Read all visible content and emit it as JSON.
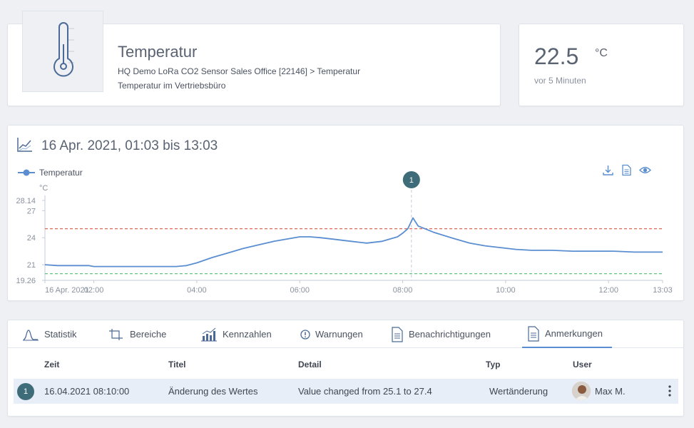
{
  "sensor": {
    "title": "Temperatur",
    "path": "HQ Demo LoRa CO2 Sensor Sales Office [22146] > Temperatur",
    "description": "Temperatur im Vertriebsbüro",
    "icon": "thermometer-icon"
  },
  "current": {
    "value": "22.5",
    "unit": "°C",
    "age": "vor 5 Minuten"
  },
  "chart": {
    "range_title": "16 Apr. 2021, 01:03 bis 13:03",
    "legend_label": "Temperatur",
    "annotation_marker": "1",
    "toolbar": [
      "download-icon",
      "document-icon",
      "eye-icon"
    ]
  },
  "chart_data": {
    "type": "line",
    "title": "16 Apr. 2021, 01:03 bis 13:03",
    "ylabel": "°C",
    "xlabel": "",
    "ylim": [
      19.26,
      28.14
    ],
    "y_ticks": [
      "28.14",
      "27",
      "24",
      "21",
      "19.26"
    ],
    "x_ticks": [
      "16 Apr. 2021",
      "02:00",
      "04:00",
      "06:00",
      "08:00",
      "10:00",
      "12:00",
      "13:03"
    ],
    "x_tick_hours": [
      1.05,
      2.0,
      4.0,
      6.0,
      8.0,
      10.0,
      12.0,
      13.05
    ],
    "thresholds": [
      {
        "value": 25.0,
        "color": "#d86a58"
      },
      {
        "value": 20.0,
        "color": "#4fbf6f"
      }
    ],
    "annotation": {
      "label": "1",
      "x_hour": 8.17
    },
    "series": [
      {
        "name": "Temperatur",
        "color": "#5b8ed0",
        "x_hours": [
          1.05,
          1.3,
          1.6,
          1.9,
          2.0,
          2.3,
          2.6,
          3.0,
          3.3,
          3.6,
          3.8,
          4.0,
          4.3,
          4.6,
          4.9,
          5.2,
          5.5,
          5.8,
          6.0,
          6.2,
          6.4,
          6.7,
          7.0,
          7.3,
          7.6,
          7.9,
          8.0,
          8.1,
          8.15,
          8.2,
          8.3,
          8.6,
          9.0,
          9.3,
          9.6,
          9.9,
          10.2,
          10.5,
          10.9,
          11.3,
          11.7,
          12.1,
          12.5,
          13.05
        ],
        "values": [
          21.0,
          20.9,
          20.9,
          20.9,
          20.8,
          20.8,
          20.8,
          20.8,
          20.8,
          20.8,
          20.9,
          21.2,
          21.8,
          22.3,
          22.8,
          23.2,
          23.6,
          23.9,
          24.1,
          24.1,
          24.0,
          23.8,
          23.6,
          23.4,
          23.6,
          24.1,
          24.5,
          25.0,
          25.6,
          26.2,
          25.3,
          24.6,
          23.9,
          23.4,
          23.1,
          22.9,
          22.7,
          22.6,
          22.6,
          22.5,
          22.5,
          22.5,
          22.4,
          22.4
        ]
      }
    ]
  },
  "tabs": [
    {
      "label": "Statistik",
      "icon": "statistics-icon"
    },
    {
      "label": "Bereiche",
      "icon": "ranges-icon"
    },
    {
      "label": "Kennzahlen",
      "icon": "bar-chart-icon"
    },
    {
      "label": "Warnungen",
      "icon": "warning-icon"
    },
    {
      "label": "Benachrichtigungen",
      "icon": "document-icon"
    },
    {
      "label": "Anmerkungen",
      "icon": "document-icon",
      "active": true
    }
  ],
  "table": {
    "headers": [
      "Zeit",
      "Titel",
      "Detail",
      "Typ",
      "User"
    ],
    "rows": [
      {
        "index": "1",
        "zeit": "16.04.2021 08:10:00",
        "titel": "Änderung des Wertes",
        "detail": "Value changed from 25.1 to 27.4",
        "typ": "Wertänderung",
        "user": "Max M."
      }
    ]
  }
}
